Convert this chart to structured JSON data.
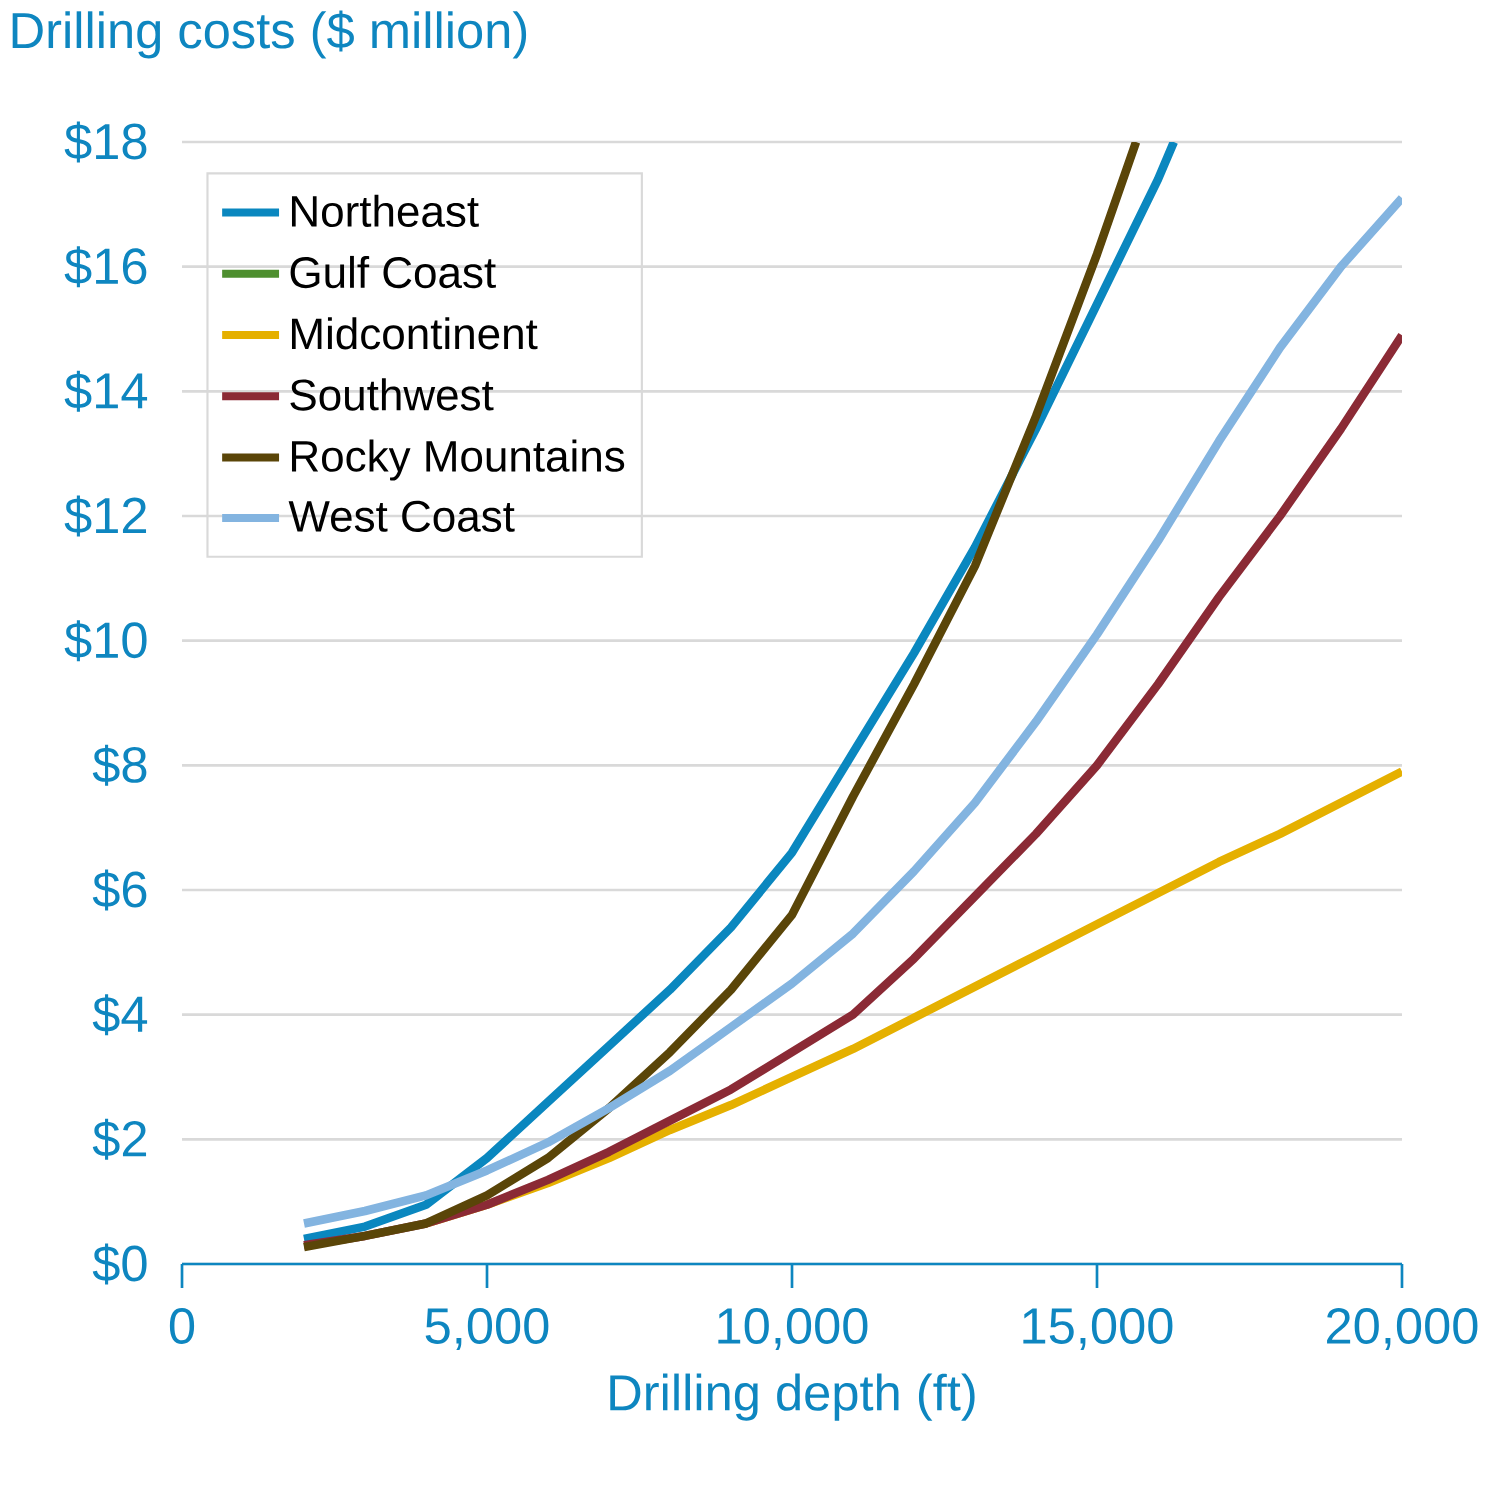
{
  "chart_data": {
    "type": "line",
    "ylabel": "Drilling costs ($ million)",
    "xlabel": "Drilling depth (ft)",
    "xlim": [
      0,
      20000
    ],
    "ylim": [
      0,
      18
    ],
    "xticks": [
      0,
      {
        "value": 5000,
        "label": "5,000"
      },
      {
        "value": 10000,
        "label": "10,000"
      },
      {
        "value": 15000,
        "label": "15,000"
      },
      {
        "value": 20000,
        "label": "20,000"
      }
    ],
    "yticks": [
      {
        "value": 0,
        "label": "$0"
      },
      {
        "value": 2,
        "label": "$2"
      },
      {
        "value": 4,
        "label": "$4"
      },
      {
        "value": 6,
        "label": "$6"
      },
      {
        "value": 8,
        "label": "$8"
      },
      {
        "value": 10,
        "label": "$10"
      },
      {
        "value": 12,
        "label": "$12"
      },
      {
        "value": 14,
        "label": "$14"
      },
      {
        "value": 16,
        "label": "$16"
      },
      {
        "value": 18,
        "label": "$18"
      }
    ],
    "grid": "y",
    "legend": "top left",
    "marker": "none",
    "line_style": "solid",
    "series": [
      {
        "name": "Northeast",
        "color": "#0a87bf",
        "x": [
          2000,
          3000,
          4000,
          5000,
          6000,
          7000,
          8000,
          9000,
          10000,
          11000,
          12000,
          13000,
          14000,
          15000,
          16000,
          16260
        ],
        "values": [
          0.4,
          0.6,
          0.95,
          1.7,
          2.6,
          3.5,
          4.4,
          5.4,
          6.6,
          8.2,
          9.8,
          11.5,
          13.4,
          15.4,
          17.4,
          18
        ]
      },
      {
        "name": "Gulf Coast",
        "color": "#4e8f2f",
        "values": [
          null
        ]
      },
      {
        "name": "Midcontinent",
        "color": "#e5b000",
        "x": [
          4000,
          5000,
          6000,
          7000,
          8000,
          9000,
          10000,
          11000,
          12000,
          13000,
          14000,
          15000,
          16000,
          17000,
          18000,
          19000,
          20000
        ],
        "values": [
          0.65,
          0.95,
          1.3,
          1.7,
          2.15,
          2.55,
          3.0,
          3.45,
          3.95,
          4.45,
          4.95,
          5.45,
          5.95,
          6.45,
          6.9,
          7.4,
          7.9
        ]
      },
      {
        "name": "Southwest",
        "color": "#8b2a35",
        "x": [
          2000,
          3000,
          4000,
          5000,
          6000,
          7000,
          8000,
          9000,
          10000,
          11000,
          12000,
          13000,
          14000,
          15000,
          16000,
          17000,
          18000,
          19000,
          20000
        ],
        "values": [
          0.3,
          0.45,
          0.65,
          0.95,
          1.35,
          1.8,
          2.3,
          2.8,
          3.4,
          4.0,
          4.9,
          5.9,
          6.9,
          8.0,
          9.3,
          10.7,
          12.0,
          13.4,
          14.9
        ]
      },
      {
        "name": "Rocky Mountains",
        "color": "#5a4508",
        "x": [
          2000,
          3000,
          4000,
          5000,
          6000,
          7000,
          8000,
          9000,
          10000,
          11000,
          12000,
          13000,
          14000,
          15000,
          15640
        ],
        "values": [
          0.27,
          0.45,
          0.65,
          1.1,
          1.7,
          2.5,
          3.4,
          4.4,
          5.6,
          7.5,
          9.3,
          11.2,
          13.6,
          16.2,
          18
        ]
      },
      {
        "name": "West Coast",
        "color": "#83b4e0",
        "x": [
          2000,
          3000,
          4000,
          5000,
          6000,
          7000,
          8000,
          9000,
          10000,
          11000,
          12000,
          13000,
          14000,
          15000,
          16000,
          17000,
          18000,
          19000,
          20000
        ],
        "values": [
          0.65,
          0.85,
          1.1,
          1.5,
          1.95,
          2.5,
          3.1,
          3.8,
          4.5,
          5.3,
          6.3,
          7.4,
          8.7,
          10.1,
          11.6,
          13.2,
          14.7,
          16.0,
          17.1
        ]
      }
    ]
  }
}
